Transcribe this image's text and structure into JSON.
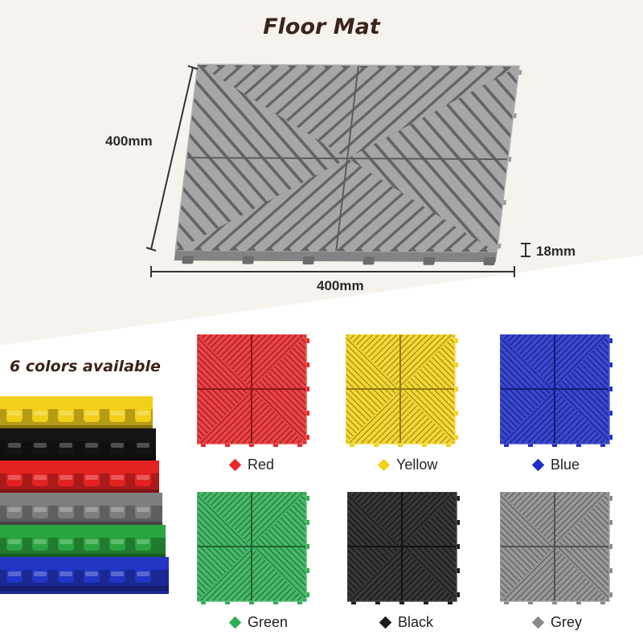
{
  "title": "Floor Mat",
  "dimensions": {
    "side_label": "400mm",
    "bottom_label": "400mm",
    "thickness_label": "18mm"
  },
  "colors_heading": "6 colors available",
  "main_tile_color": "#9a9a9a",
  "swatches": [
    {
      "name": "Red",
      "color": "#e8282c"
    },
    {
      "name": "Yellow",
      "color": "#f2d21c"
    },
    {
      "name": "Blue",
      "color": "#1e2fc8"
    },
    {
      "name": "Green",
      "color": "#2fae55"
    },
    {
      "name": "Black",
      "color": "#1c1c1c"
    },
    {
      "name": "Grey",
      "color": "#8a8a8a"
    }
  ],
  "stack_colors": [
    "#f2cf1a",
    "#141414",
    "#e32222",
    "#7e7e7e",
    "#2aa440",
    "#2235c4"
  ]
}
